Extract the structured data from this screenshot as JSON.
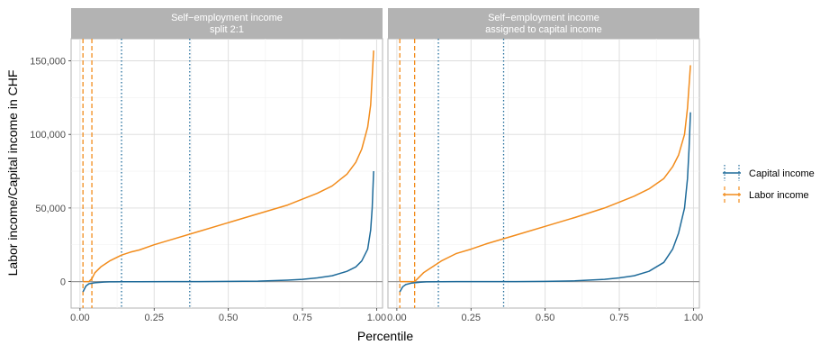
{
  "chart_data": {
    "type": "line",
    "xlabel": "Percentile",
    "ylabel": "Labor income/Capital income in CHF",
    "xlim": [
      -0.03,
      1.02
    ],
    "ylim": [
      -18000,
      165000
    ],
    "x_ticks": [
      "0.00",
      "0.25",
      "0.50",
      "0.75",
      "1.00"
    ],
    "x_tick_values": [
      0,
      0.25,
      0.5,
      0.75,
      1.0
    ],
    "y_ticks": [
      "0",
      "50,000",
      "100,000",
      "150,000"
    ],
    "y_tick_values": [
      0,
      50000,
      100000,
      150000
    ],
    "grid": true,
    "legend": {
      "position": "right",
      "entries": [
        {
          "name": "Capital income",
          "color": "#1f6b9a",
          "vline_style": "dotted"
        },
        {
          "name": "Labor income",
          "color": "#f28c1c",
          "vline_style": "dashed"
        }
      ]
    },
    "colors": {
      "capital": "#1f6b9a",
      "labor": "#f28c1c",
      "strip": "#b3b3b3",
      "zero_line": "#999999"
    },
    "panels": [
      {
        "title_line1": "Self−employment income",
        "title_line2": "split 2:1",
        "series": [
          {
            "name": "Labor income",
            "x": [
              0.01,
              0.03,
              0.04,
              0.05,
              0.07,
              0.1,
              0.14,
              0.17,
              0.2,
              0.25,
              0.3,
              0.4,
              0.5,
              0.6,
              0.7,
              0.75,
              0.8,
              0.85,
              0.9,
              0.93,
              0.95,
              0.97,
              0.98,
              0.99
            ],
            "y": [
              0,
              0,
              2000,
              6000,
              10000,
              14000,
              18000,
              20000,
              21500,
              25000,
              28000,
              34000,
              40000,
              46000,
              52000,
              56000,
              60000,
              65000,
              73000,
              81000,
              90000,
              105000,
              120000,
              157000
            ]
          },
          {
            "name": "Capital income",
            "x": [
              0.01,
              0.02,
              0.03,
              0.05,
              0.08,
              0.1,
              0.15,
              0.2,
              0.3,
              0.4,
              0.5,
              0.6,
              0.7,
              0.75,
              0.8,
              0.85,
              0.9,
              0.93,
              0.95,
              0.97,
              0.98,
              0.985,
              0.99
            ],
            "y": [
              -7000,
              -3000,
              -1500,
              -800,
              -300,
              -200,
              -100,
              -50,
              0,
              0,
              100,
              300,
              1000,
              1500,
              2500,
              4000,
              7000,
              10000,
              14000,
              22000,
              35000,
              50000,
              75000
            ]
          }
        ],
        "vlines_labor": [
          0.01,
          0.04
        ],
        "vlines_capital": [
          0.14,
          0.37
        ]
      },
      {
        "title_line1": "Self−employment income",
        "title_line2": "assigned to capital income",
        "series": [
          {
            "name": "Labor income",
            "x": [
              0.01,
              0.06,
              0.07,
              0.09,
              0.12,
              0.15,
              0.2,
              0.25,
              0.3,
              0.4,
              0.5,
              0.6,
              0.7,
              0.75,
              0.8,
              0.85,
              0.9,
              0.93,
              0.95,
              0.97,
              0.98,
              0.99
            ],
            "y": [
              0,
              0,
              2000,
              6000,
              10000,
              14000,
              19000,
              22000,
              25500,
              31500,
              37500,
              43500,
              50000,
              54000,
              58000,
              63000,
              70000,
              78000,
              86000,
              100000,
              118000,
              147000
            ]
          },
          {
            "name": "Capital income",
            "x": [
              0.01,
              0.02,
              0.03,
              0.05,
              0.08,
              0.1,
              0.15,
              0.2,
              0.3,
              0.4,
              0.5,
              0.6,
              0.7,
              0.75,
              0.8,
              0.85,
              0.9,
              0.93,
              0.95,
              0.97,
              0.98,
              0.985,
              0.99
            ],
            "y": [
              -7000,
              -3500,
              -2000,
              -1000,
              -400,
              -200,
              -100,
              0,
              0,
              0,
              100,
              500,
              1500,
              2500,
              4000,
              7000,
              13000,
              22000,
              33000,
              50000,
              70000,
              90000,
              115000
            ]
          }
        ],
        "vlines_labor": [
          0.01,
          0.06
        ],
        "vlines_capital": [
          0.14,
          0.36
        ]
      }
    ]
  }
}
